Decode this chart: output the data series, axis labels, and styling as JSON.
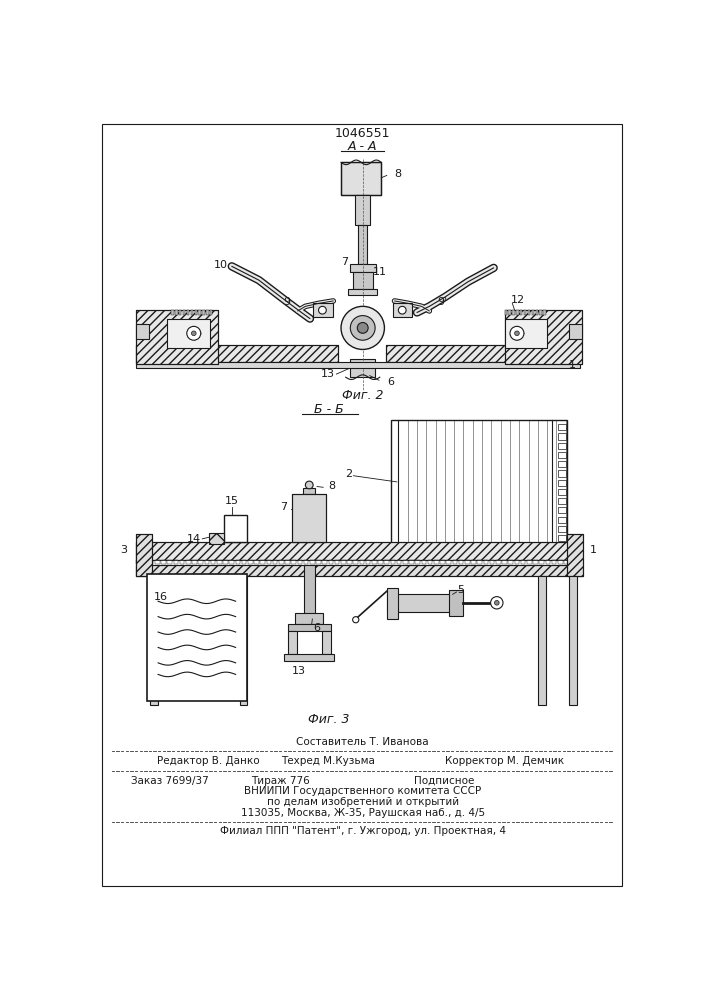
{
  "patent_number": "1046551",
  "section_aa": "А - А",
  "section_bb": "Б - Б",
  "fig2": "Фиг. 2",
  "fig3": "Фиг. 3",
  "footer_sestavitel": "Составитель Т. Иванова",
  "footer_line1_left": "Редактор В. Данко",
  "footer_line1_center": "Техред М.Кузьма",
  "footer_line1_right": "Корректор М. Демчик",
  "footer_order": "Заказ 7699/37",
  "footer_tirazh": "Тираж 776",
  "footer_podpisnoe": "Подписное",
  "footer_vnipi": "ВНИИПИ Государственного комитета СССР",
  "footer_po_delam": "по делам изобретений и открытий",
  "footer_address": "113035, Москва, Ж-35, Раушская наб., д. 4/5",
  "footer_filial": "Филиал ППП \"Патент\", г. Ужгород, ул. Проектная, 4",
  "bg_color": "#ffffff",
  "line_color": "#1a1a1a"
}
